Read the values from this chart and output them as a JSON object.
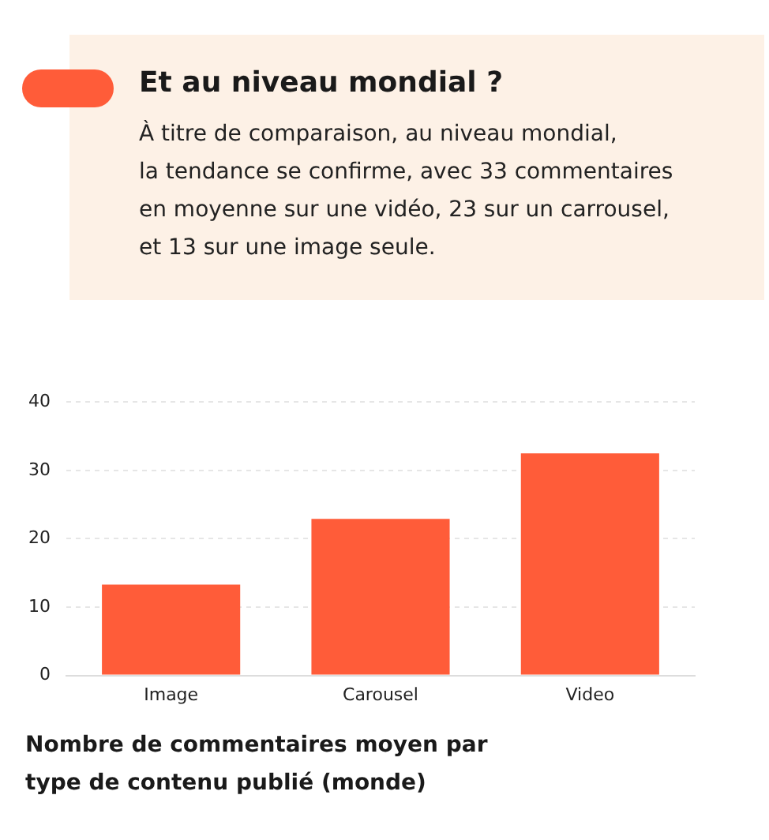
{
  "chart_data": {
    "type": "bar",
    "title": "Et au niveau mondial ?",
    "subtitle": "À titre de comparaison, au niveau mondial,\nla tendance se confirme, avec 33 commentaires\nen moyenne sur une vidéo, 23 sur un carrousel,\net 13 sur une image seule.",
    "categories": [
      "Image",
      "Carousel",
      "Video"
    ],
    "values": [
      13.3,
      22.9,
      32.5
    ],
    "color": "#ff5c39",
    "ylim": [
      0,
      40
    ],
    "yticks": [
      0,
      10,
      20,
      30,
      40
    ],
    "grid": "y",
    "legend": false,
    "annotations": [
      "Nombre de commentaires moyen par type de contenu publié (monde)"
    ]
  }
}
